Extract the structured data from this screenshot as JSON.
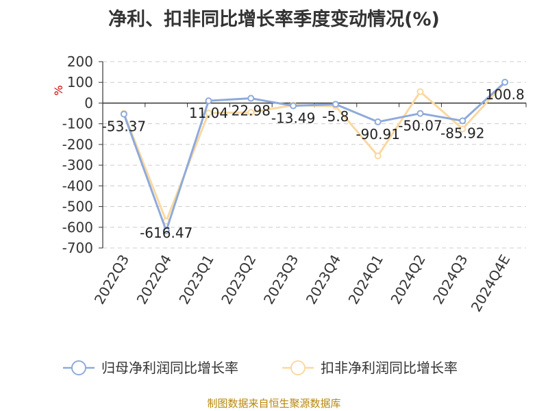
{
  "chart_data": {
    "type": "line",
    "title": "净利、扣非同比增长率季度变动情况(%)",
    "ylabel": "%",
    "ylim": [
      -700,
      200
    ],
    "yticks": [
      200,
      100,
      0,
      -100,
      -200,
      -300,
      -400,
      -500,
      -600,
      -700
    ],
    "grid": true,
    "legend_position": "bottom",
    "categories": [
      "2022Q3",
      "2022Q4",
      "2023Q1",
      "2023Q2",
      "2023Q3",
      "2023Q4",
      "2024Q1",
      "2024Q2",
      "2024Q3",
      "2024Q4E"
    ],
    "series": [
      {
        "name": "归母净利润同比增长率",
        "color": "#8eaadb",
        "values": [
          -53.37,
          -616.47,
          11.04,
          22.98,
          -13.49,
          -5.8,
          -90.91,
          -50.07,
          -85.92,
          100.8
        ],
        "labels": [
          "-53.37",
          "-616.47",
          "11.04",
          "22.98",
          "-13.49",
          "-5.8",
          "-90.91",
          "-50.07",
          "-85.92",
          "100.8"
        ]
      },
      {
        "name": "扣非净利润同比增长率",
        "color": "#fbd8a0",
        "values": [
          -50,
          -570,
          -48,
          -45,
          -10,
          -15,
          -255,
          55,
          -125,
          100
        ]
      }
    ]
  },
  "source": "制图数据来自恒生聚源数据库"
}
